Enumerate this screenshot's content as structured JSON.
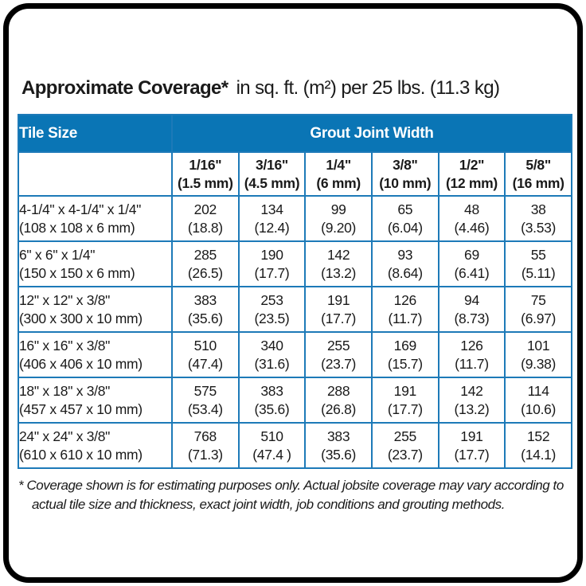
{
  "colors": {
    "blue": "#0a75b5",
    "grid": "#1d7ab8",
    "text": "#1a1a1a",
    "frame": "#000000"
  },
  "title": {
    "main": "Approximate Coverage*",
    "suffix": "in sq. ft. (m²) per 25 lbs. (11.3 kg)"
  },
  "table": {
    "tile_size_header": "Tile Size",
    "group_header": "Grout Joint Width",
    "columns": [
      {
        "inch": "1/16\"",
        "mm": "(1.5 mm)"
      },
      {
        "inch": "3/16\"",
        "mm": "(4.5 mm)"
      },
      {
        "inch": "1/4\"",
        "mm": "(6 mm)"
      },
      {
        "inch": "3/8\"",
        "mm": "(10 mm)"
      },
      {
        "inch": "1/2\"",
        "mm": "(12 mm)"
      },
      {
        "inch": "5/8\"",
        "mm": "(16 mm)"
      }
    ],
    "rows": [
      {
        "tile_inch": "4-1/4\" x 4-1/4\" x 1/4\"",
        "tile_mm": "(108 x 108 x 6 mm)",
        "cells": [
          {
            "sqft": "202",
            "m2": "(18.8)"
          },
          {
            "sqft": "134",
            "m2": "(12.4)"
          },
          {
            "sqft": "99",
            "m2": "(9.20)"
          },
          {
            "sqft": "65",
            "m2": "(6.04)"
          },
          {
            "sqft": "48",
            "m2": "(4.46)"
          },
          {
            "sqft": "38",
            "m2": "(3.53)"
          }
        ]
      },
      {
        "tile_inch": "6\" x 6\" x 1/4\"",
        "tile_mm": "(150 x 150 x 6 mm)",
        "cells": [
          {
            "sqft": "285",
            "m2": "(26.5)"
          },
          {
            "sqft": "190",
            "m2": "(17.7)"
          },
          {
            "sqft": "142",
            "m2": "(13.2)"
          },
          {
            "sqft": "93",
            "m2": "(8.64)"
          },
          {
            "sqft": "69",
            "m2": "(6.41)"
          },
          {
            "sqft": "55",
            "m2": "(5.11)"
          }
        ]
      },
      {
        "tile_inch": "12\" x 12\" x 3/8\"",
        "tile_mm": "(300 x 300 x 10 mm)",
        "cells": [
          {
            "sqft": "383",
            "m2": "(35.6)"
          },
          {
            "sqft": "253",
            "m2": "(23.5)"
          },
          {
            "sqft": "191",
            "m2": "(17.7)"
          },
          {
            "sqft": "126",
            "m2": "(11.7)"
          },
          {
            "sqft": "94",
            "m2": "(8.73)"
          },
          {
            "sqft": "75",
            "m2": "(6.97)"
          }
        ]
      },
      {
        "tile_inch": "16\" x 16\" x 3/8\"",
        "tile_mm": "(406 x 406 x 10 mm)",
        "cells": [
          {
            "sqft": "510",
            "m2": "(47.4)"
          },
          {
            "sqft": "340",
            "m2": "(31.6)"
          },
          {
            "sqft": "255",
            "m2": "(23.7)"
          },
          {
            "sqft": "169",
            "m2": "(15.7)"
          },
          {
            "sqft": "126",
            "m2": "(11.7)"
          },
          {
            "sqft": "101",
            "m2": "(9.38)"
          }
        ]
      },
      {
        "tile_inch": "18\" x 18\" x 3/8\"",
        "tile_mm": "(457 x 457 x 10 mm)",
        "cells": [
          {
            "sqft": "575",
            "m2": "(53.4)"
          },
          {
            "sqft": "383",
            "m2": "(35.6)"
          },
          {
            "sqft": "288",
            "m2": "(26.8)"
          },
          {
            "sqft": "191",
            "m2": "(17.7)"
          },
          {
            "sqft": "142",
            "m2": "(13.2)"
          },
          {
            "sqft": "114",
            "m2": "(10.6)"
          }
        ]
      },
      {
        "tile_inch": "24\" x 24\" x 3/8\"",
        "tile_mm": "(610 x 610 x 10 mm)",
        "cells": [
          {
            "sqft": "768",
            "m2": "(71.3)"
          },
          {
            "sqft": "510",
            "m2": "(47.4 )"
          },
          {
            "sqft": "383",
            "m2": "(35.6)"
          },
          {
            "sqft": "255",
            "m2": "(23.7)"
          },
          {
            "sqft": "191",
            "m2": "(17.7)"
          },
          {
            "sqft": "152",
            "m2": "(14.1)"
          }
        ]
      }
    ]
  },
  "footnote": "* Coverage shown is for estimating purposes only. Actual jobsite coverage may vary according to actual tile size and thickness, exact joint width, job conditions and grouting methods."
}
